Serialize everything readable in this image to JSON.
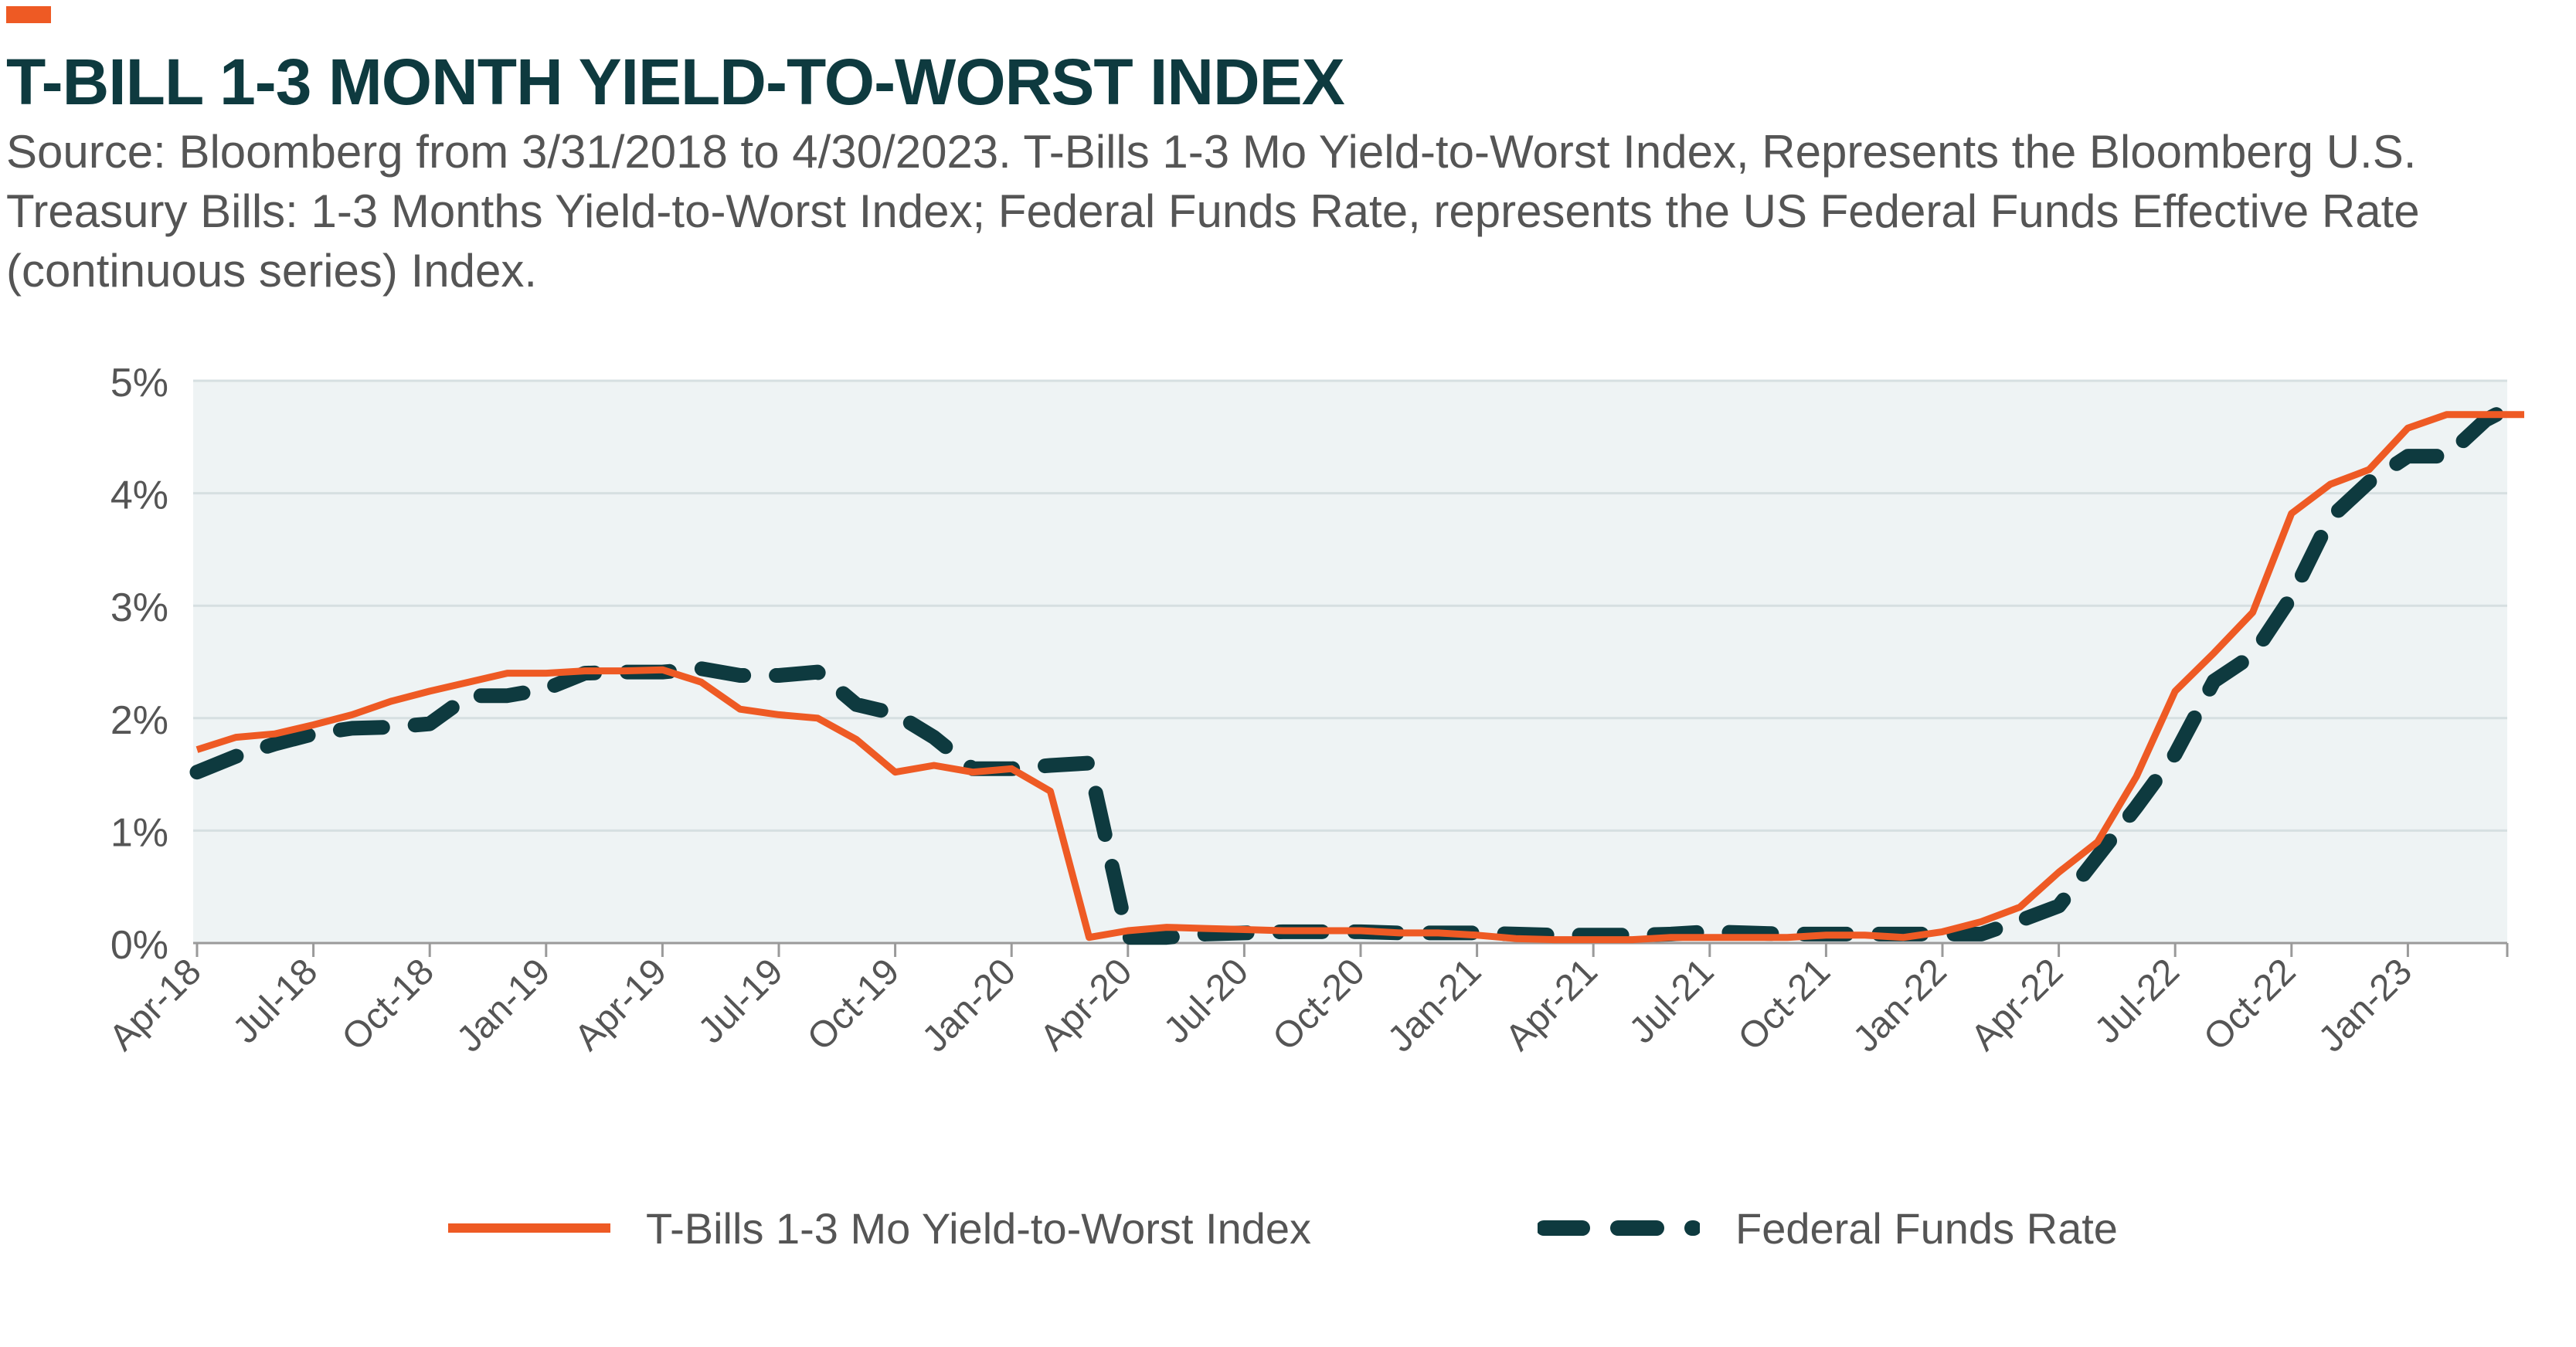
{
  "header": {
    "title": "T-BILL 1-3 MONTH YIELD-TO-WORST INDEX",
    "subtitle": "Source: Bloomberg from 3/31/2018 to 4/30/2023. T-Bills 1-3 Mo Yield-to-Worst Index, Represents the Bloomberg U.S. Treasury Bills: 1-3 Months Yield-to-Worst Index; Federal Funds Rate, represents the US Federal Funds Effective Rate (continuous series) Index."
  },
  "colors": {
    "accent": "#ee5a24",
    "tbill_series": "#ee5a24",
    "fed_series": "#0e3a3f",
    "plot_background": "#eef3f4",
    "gridline": "#d6dfe1",
    "text": "#555555",
    "title": "#0e3a3f"
  },
  "legend": {
    "tbill_label": "T-Bills 1-3 Mo Yield-to-Worst Index",
    "fed_label": "Federal Funds Rate"
  },
  "chart_data": {
    "type": "line",
    "title": "T-BILL 1-3 MONTH YIELD-TO-WORST INDEX",
    "xlabel": "",
    "ylabel": "",
    "ylim": [
      0,
      5
    ],
    "y_ticks": [
      0,
      1,
      2,
      3,
      4,
      5
    ],
    "y_tick_labels": [
      "0%",
      "1%",
      "2%",
      "3%",
      "4%",
      "5%"
    ],
    "x_tick_labels": [
      "Apr-18",
      "Jul-18",
      "Oct-18",
      "Jan-19",
      "Apr-19",
      "Jul-19",
      "Oct-19",
      "Jan-20",
      "Apr-20",
      "Jul-20",
      "Oct-20",
      "Jan-21",
      "Apr-21",
      "Jul-21",
      "Oct-21",
      "Jan-22",
      "Apr-22",
      "Jul-22",
      "Oct-22",
      "Jan-23"
    ],
    "x": [
      "Apr-18",
      "May-18",
      "Jun-18",
      "Jul-18",
      "Aug-18",
      "Sep-18",
      "Oct-18",
      "Nov-18",
      "Dec-18",
      "Jan-19",
      "Feb-19",
      "Mar-19",
      "Apr-19",
      "May-19",
      "Jun-19",
      "Jul-19",
      "Aug-19",
      "Sep-19",
      "Oct-19",
      "Nov-19",
      "Dec-19",
      "Jan-20",
      "Feb-20",
      "Mar-20",
      "Apr-20",
      "May-20",
      "Jun-20",
      "Jul-20",
      "Aug-20",
      "Sep-20",
      "Oct-20",
      "Nov-20",
      "Dec-20",
      "Jan-21",
      "Feb-21",
      "Mar-21",
      "Apr-21",
      "May-21",
      "Jun-21",
      "Jul-21",
      "Aug-21",
      "Sep-21",
      "Oct-21",
      "Nov-21",
      "Dec-21",
      "Jan-22",
      "Feb-22",
      "Mar-22",
      "Apr-22",
      "May-22",
      "Jun-22",
      "Jul-22",
      "Aug-22",
      "Sep-22",
      "Oct-22",
      "Nov-22",
      "Dec-22",
      "Jan-23",
      "Feb-23",
      "Mar-23",
      "Apr-23"
    ],
    "grid": true,
    "legend_position": "bottom",
    "series": [
      {
        "name": "T-Bills 1-3 Mo Yield-to-Worst Index",
        "style": "solid",
        "values": [
          1.72,
          1.83,
          1.86,
          1.94,
          2.03,
          2.15,
          2.24,
          2.32,
          2.4,
          2.4,
          2.42,
          2.42,
          2.43,
          2.32,
          2.08,
          2.03,
          2.0,
          1.81,
          1.52,
          1.58,
          1.52,
          1.55,
          1.35,
          0.05,
          0.11,
          0.14,
          0.13,
          0.12,
          0.11,
          0.11,
          0.11,
          0.09,
          0.09,
          0.07,
          0.04,
          0.03,
          0.03,
          0.03,
          0.05,
          0.05,
          0.05,
          0.05,
          0.07,
          0.07,
          0.05,
          0.1,
          0.19,
          0.32,
          0.63,
          0.9,
          1.48,
          2.24,
          2.58,
          2.94,
          3.82,
          4.08,
          4.21,
          4.58,
          4.7,
          4.7,
          4.7
        ]
      },
      {
        "name": "Federal Funds Rate",
        "style": "dashed",
        "values": [
          1.52,
          1.66,
          1.77,
          1.86,
          1.91,
          1.92,
          1.95,
          2.2,
          2.2,
          2.26,
          2.4,
          2.41,
          2.41,
          2.44,
          2.38,
          2.38,
          2.41,
          2.12,
          2.04,
          1.83,
          1.55,
          1.55,
          1.58,
          1.6,
          0.05,
          0.05,
          0.08,
          0.09,
          0.1,
          0.1,
          0.1,
          0.09,
          0.09,
          0.09,
          0.08,
          0.07,
          0.07,
          0.07,
          0.08,
          0.1,
          0.09,
          0.08,
          0.08,
          0.08,
          0.08,
          0.08,
          0.08,
          0.2,
          0.33,
          0.77,
          1.21,
          1.68,
          2.33,
          2.56,
          3.08,
          3.78,
          4.1,
          4.33,
          4.33,
          4.65,
          4.83
        ]
      }
    ]
  }
}
